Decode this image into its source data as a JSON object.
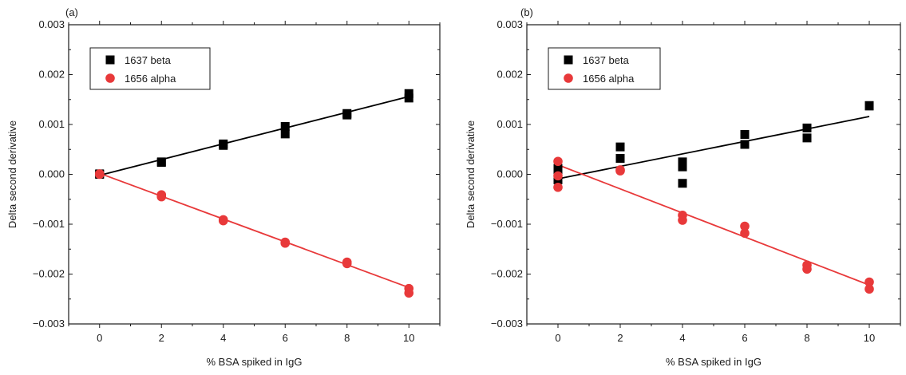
{
  "chart_data": [
    {
      "type": "scatter",
      "panel_label": "(a)",
      "xlabel": "% BSA spiked in IgG",
      "ylabel": "Delta second derivative",
      "xlim": [
        -1,
        11
      ],
      "ylim": [
        -0.003,
        0.003
      ],
      "xticks": [
        0,
        2,
        4,
        6,
        8,
        10
      ],
      "xtick_labels": [
        "0",
        "2",
        "4",
        "6",
        "8",
        "10"
      ],
      "yticks": [
        -0.003,
        -0.002,
        -0.001,
        0.0,
        0.001,
        0.002,
        0.003
      ],
      "ytick_labels": [
        "−0.003",
        "−0.002",
        "−0.001",
        "0.000",
        "0.001",
        "0.002",
        "0.003"
      ],
      "legend_position": "top-left",
      "series": [
        {
          "name": "1637 beta",
          "marker": "square",
          "color": "#000000",
          "points": [
            [
              0,
              0.0
            ],
            [
              0,
              1e-05
            ],
            [
              2,
              0.00024
            ],
            [
              2,
              0.00025
            ],
            [
              4,
              0.00058
            ],
            [
              4,
              0.00061
            ],
            [
              6,
              0.00081
            ],
            [
              6,
              0.00096
            ],
            [
              8,
              0.00119
            ],
            [
              8,
              0.00122
            ],
            [
              10,
              0.00153
            ],
            [
              10,
              0.00162
            ]
          ],
          "fit": [
            [
              0,
              -2e-05
            ],
            [
              10,
              0.00156
            ]
          ]
        },
        {
          "name": "1656 alpha",
          "marker": "circle",
          "color": "#e8393a",
          "points": [
            [
              0,
              0.0
            ],
            [
              0,
              1e-05
            ],
            [
              2,
              -0.00041
            ],
            [
              2,
              -0.00045
            ],
            [
              4,
              -0.00091
            ],
            [
              4,
              -0.00093
            ],
            [
              6,
              -0.00136
            ],
            [
              6,
              -0.00138
            ],
            [
              8,
              -0.00176
            ],
            [
              8,
              -0.00179
            ],
            [
              10,
              -0.00229
            ],
            [
              10,
              -0.00238
            ]
          ],
          "fit": [
            [
              0,
              2e-05
            ],
            [
              10,
              -0.00227
            ]
          ]
        }
      ]
    },
    {
      "type": "scatter",
      "panel_label": "(b)",
      "xlabel": "% BSA spiked in IgG",
      "ylabel": "Delta second derivative",
      "xlim": [
        -1,
        11
      ],
      "ylim": [
        -0.003,
        0.003
      ],
      "xticks": [
        0,
        2,
        4,
        6,
        8,
        10
      ],
      "xtick_labels": [
        "0",
        "2",
        "4",
        "6",
        "8",
        "10"
      ],
      "yticks": [
        -0.003,
        -0.002,
        -0.001,
        0.0,
        0.001,
        0.002,
        0.003
      ],
      "ytick_labels": [
        "−0.003",
        "−0.002",
        "−0.001",
        "0.000",
        "0.001",
        "0.002",
        "0.003"
      ],
      "legend_position": "top-left",
      "series": [
        {
          "name": "1637 beta",
          "marker": "square",
          "color": "#000000",
          "points": [
            [
              0,
              0.00012
            ],
            [
              0,
              0.0
            ],
            [
              0,
              -0.00011
            ],
            [
              2,
              0.00055
            ],
            [
              2,
              0.00032
            ],
            [
              4,
              0.00025
            ],
            [
              4,
              0.00015
            ],
            [
              4,
              -0.00018
            ],
            [
              6,
              0.0008
            ],
            [
              6,
              0.0006
            ],
            [
              8,
              0.00093
            ],
            [
              8,
              0.00073
            ],
            [
              10,
              0.00137
            ],
            [
              10,
              0.00138
            ]
          ],
          "fit": [
            [
              0,
              -9e-05
            ],
            [
              10,
              0.00116
            ]
          ]
        },
        {
          "name": "1656 alpha",
          "marker": "circle",
          "color": "#e8393a",
          "points": [
            [
              0,
              0.00026
            ],
            [
              0,
              -3e-05
            ],
            [
              0,
              -0.00026
            ],
            [
              2,
              7e-05
            ],
            [
              2,
              9e-05
            ],
            [
              4,
              -0.00082
            ],
            [
              4,
              -0.00092
            ],
            [
              6,
              -0.00104
            ],
            [
              6,
              -0.00118
            ],
            [
              8,
              -0.00182
            ],
            [
              8,
              -0.0019
            ],
            [
              10,
              -0.00216
            ],
            [
              10,
              -0.0023
            ]
          ],
          "fit": [
            [
              0,
              0.00019
            ],
            [
              10,
              -0.00222
            ]
          ]
        }
      ]
    }
  ]
}
